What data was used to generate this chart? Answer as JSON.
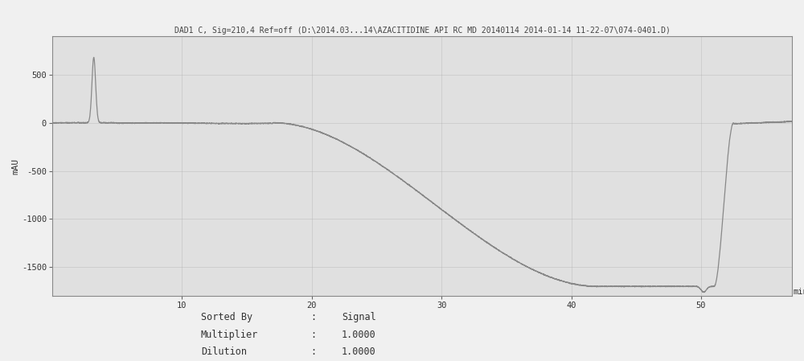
{
  "title": "DAD1 C, Sig=210,4 Ref=off (D:\\2014.03...14\\AZACITIDINE API RC MD 20140114 2014-01-14 11-22-07\\074-0401.D)",
  "ylabel": "mAU",
  "xlabel_end": "min",
  "xlim": [
    0,
    57
  ],
  "ylim": [
    -1800,
    900
  ],
  "yticks": [
    -1500,
    -1000,
    -500,
    0,
    500
  ],
  "xticks": [
    10,
    20,
    30,
    40,
    50
  ],
  "bg_color": "#f0f0f0",
  "plot_bg_color": "#e0e0e0",
  "line_color": "#888888",
  "title_fontsize": 7.0,
  "tick_fontsize": 7.5,
  "label_fontsize": 8,
  "table_fontsize": 8.5,
  "spike_x": 3.2,
  "spike_peak": 680
}
